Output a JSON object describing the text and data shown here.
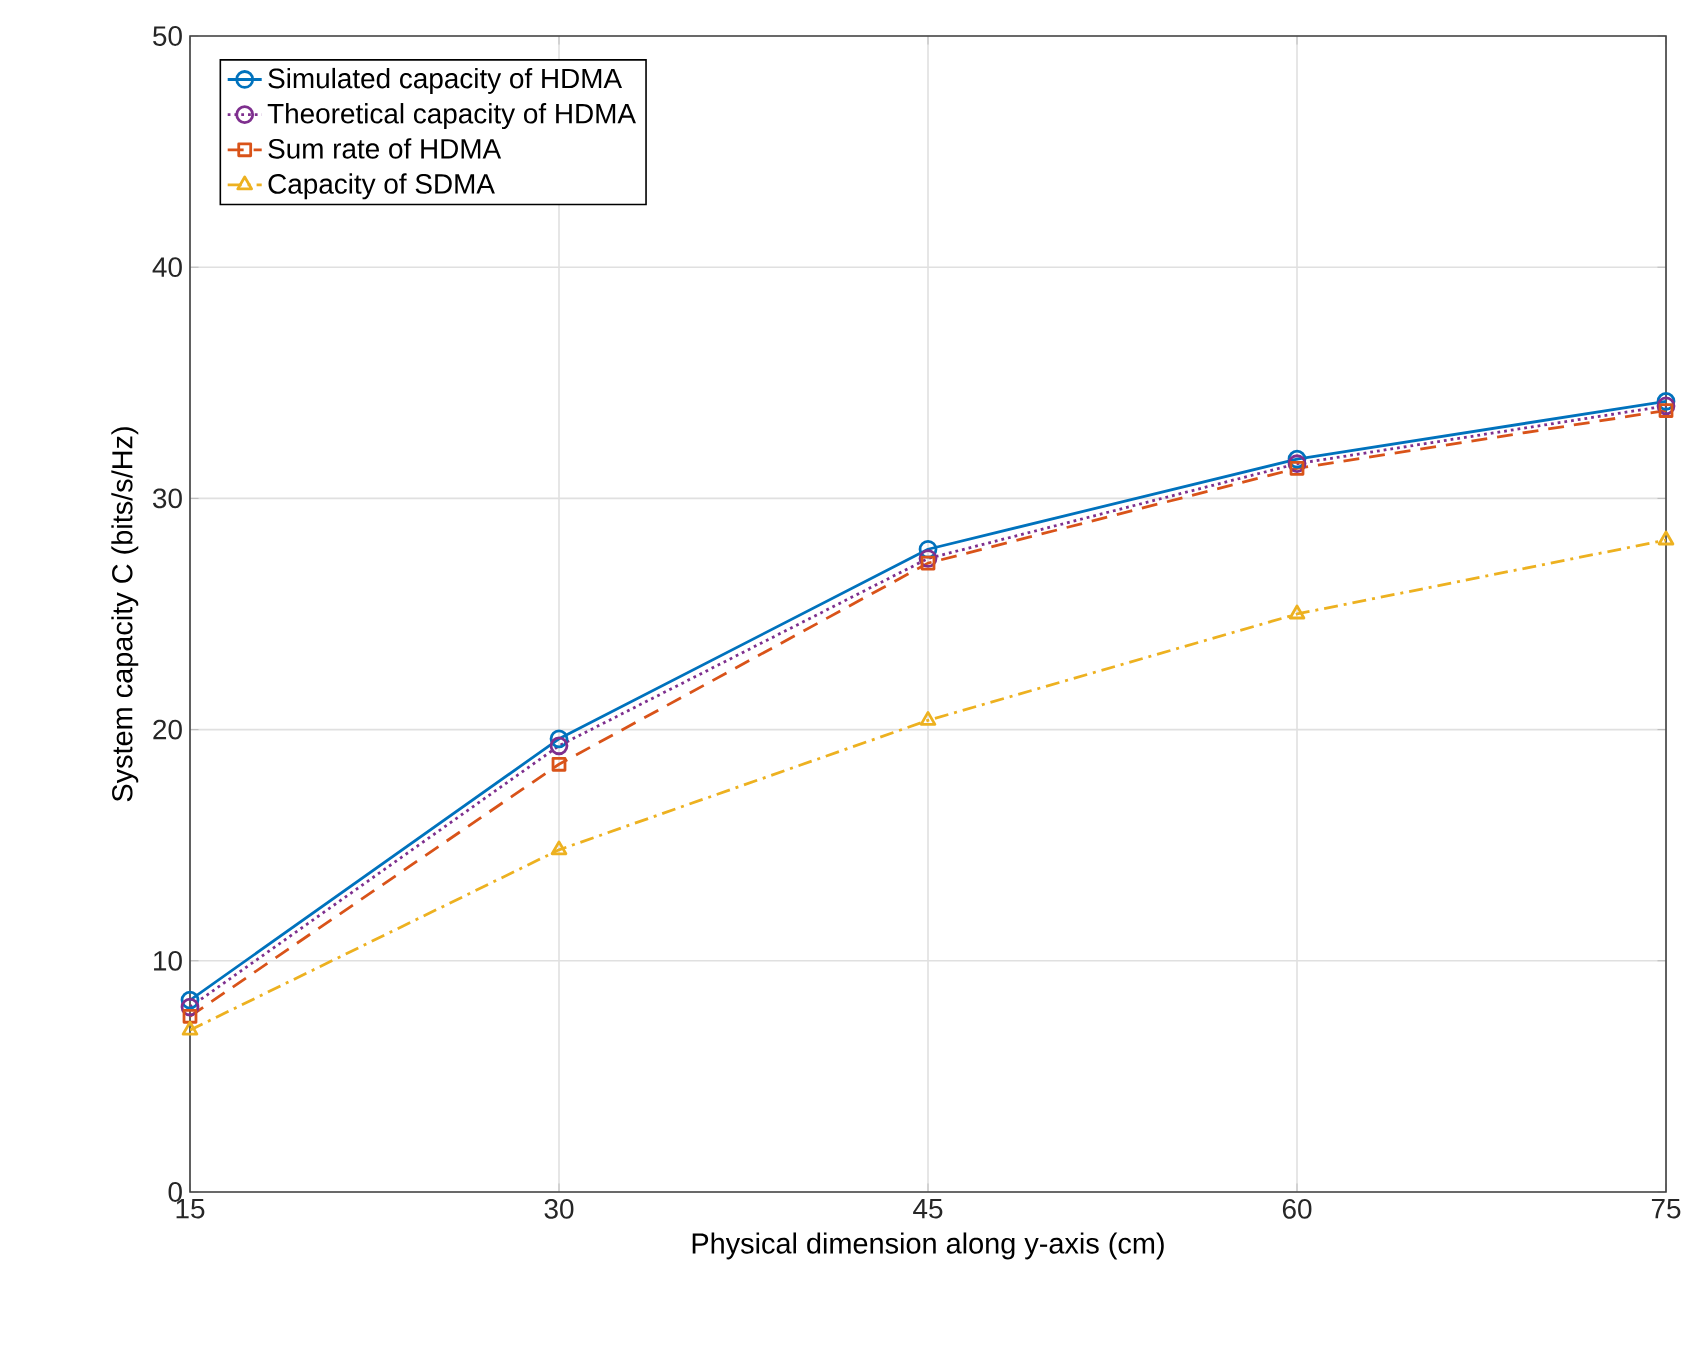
{
  "chart_data": {
    "type": "line",
    "xlabel": "Physical dimension along y-axis (cm)",
    "ylabel": "System capacity C (bits/s/Hz)",
    "x": [
      15,
      30,
      45,
      60,
      75
    ],
    "series": [
      {
        "name": "Simulated capacity of HDMA",
        "color": "#0072bd",
        "marker": "circle",
        "line_style": "solid",
        "values": [
          8.3,
          19.6,
          27.8,
          31.7,
          34.2
        ]
      },
      {
        "name": "Theoretical capacity of HDMA",
        "color": "#7e2f8e",
        "marker": "circle",
        "line_style": "dotted",
        "values": [
          8.0,
          19.3,
          27.4,
          31.5,
          34.0
        ]
      },
      {
        "name": "Sum rate of HDMA",
        "color": "#d95319",
        "marker": "square",
        "line_style": "dashed",
        "values": [
          7.6,
          18.5,
          27.2,
          31.3,
          33.8
        ]
      },
      {
        "name": "Capacity of SDMA",
        "color": "#edb120",
        "marker": "triangle",
        "line_style": "dashdot",
        "values": [
          7.0,
          14.8,
          20.4,
          25.0,
          28.2
        ]
      }
    ],
    "xlim": [
      15,
      75
    ],
    "xticks": [
      15,
      30,
      45,
      60,
      75
    ],
    "ylim": [
      0,
      50
    ],
    "yticks": [
      0,
      10,
      20,
      30,
      40,
      50
    ],
    "grid": true,
    "legend": "top left"
  }
}
